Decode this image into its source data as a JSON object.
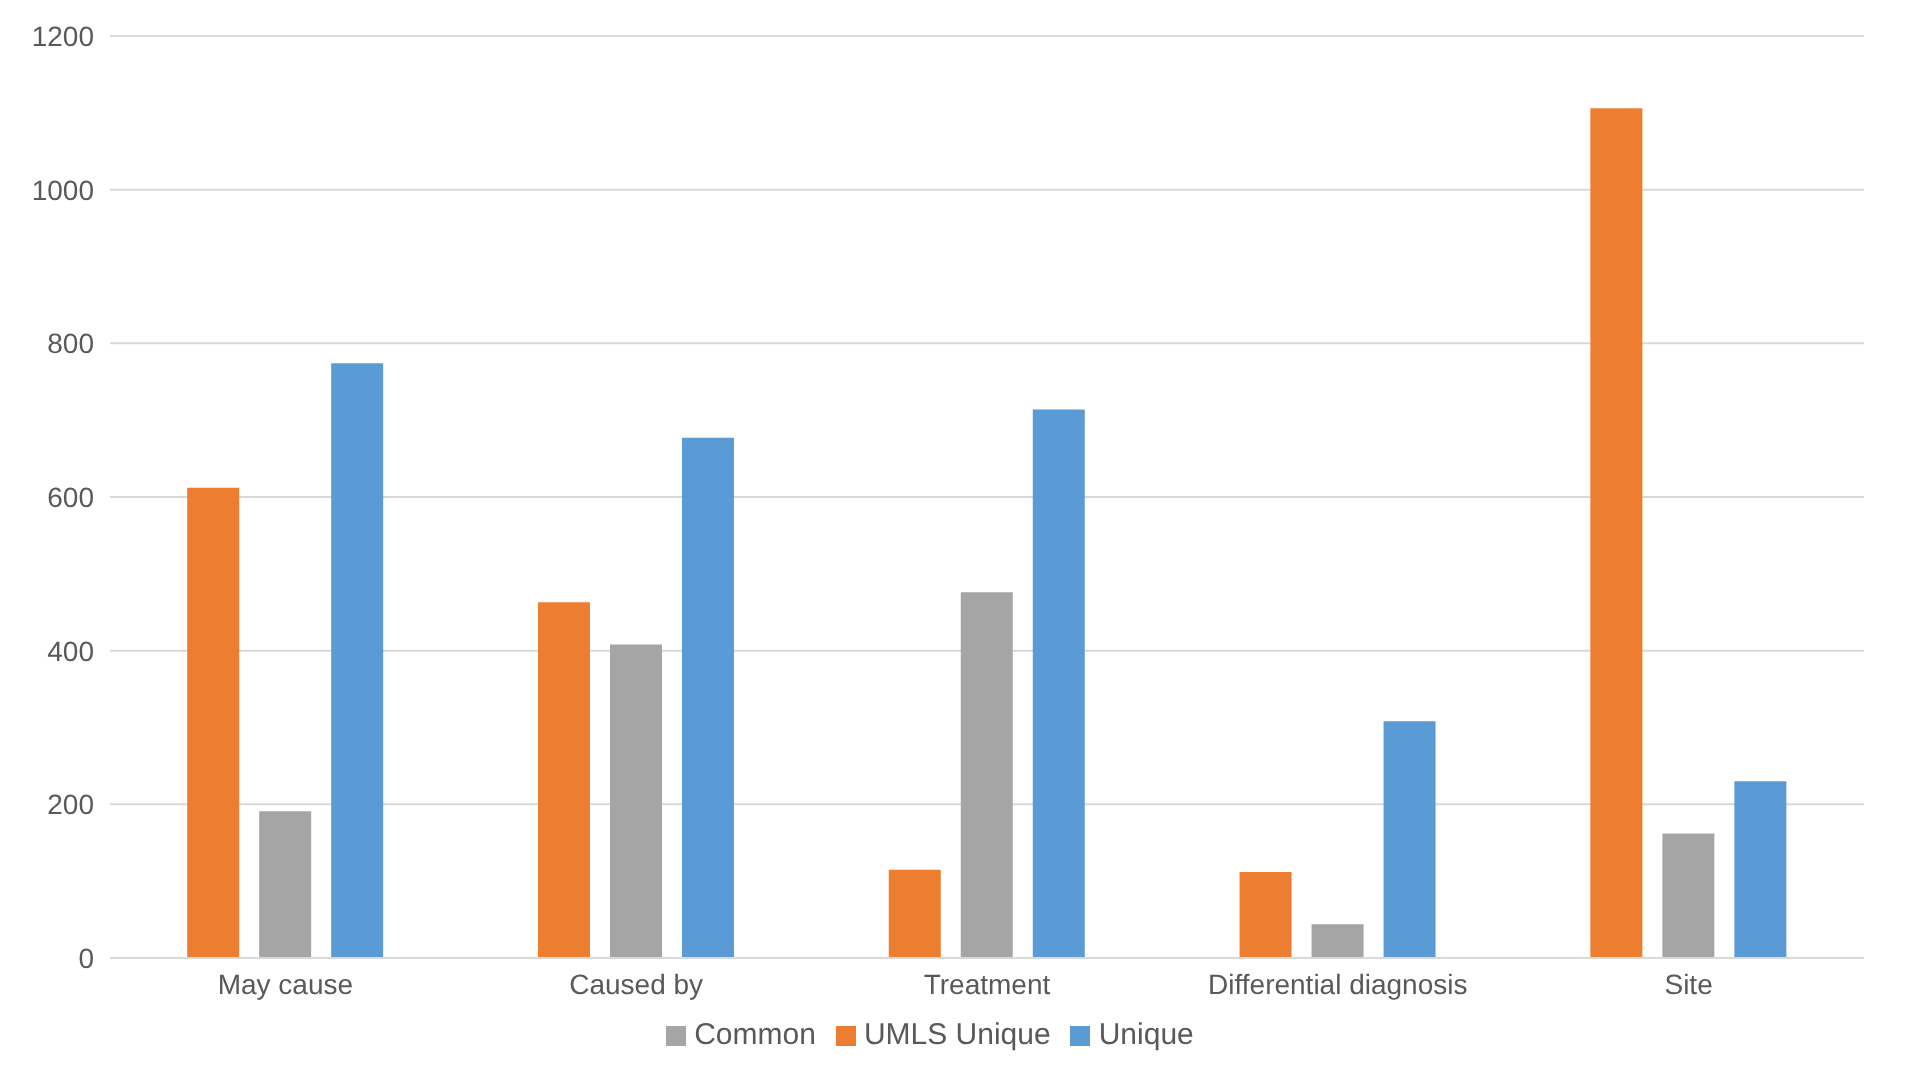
{
  "chart_data": {
    "type": "bar",
    "categories": [
      "May cause",
      "Caused by",
      "Treatment",
      "Differential diagnosis",
      "Site"
    ],
    "series": [
      {
        "name": "UMLS Unique",
        "color": "#ed7d31",
        "values": [
          612,
          463,
          115,
          112,
          1106
        ]
      },
      {
        "name": "Common",
        "color": "#a5a5a5",
        "values": [
          191,
          408,
          476,
          44,
          162
        ]
      },
      {
        "name": "Unique",
        "color": "#5b9bd5",
        "values": [
          774,
          677,
          714,
          308,
          230
        ]
      }
    ],
    "ylim": [
      0,
      1200
    ],
    "yticks": [
      0,
      200,
      400,
      600,
      800,
      1000,
      1200
    ],
    "grid": "y",
    "legend": "bottom"
  }
}
